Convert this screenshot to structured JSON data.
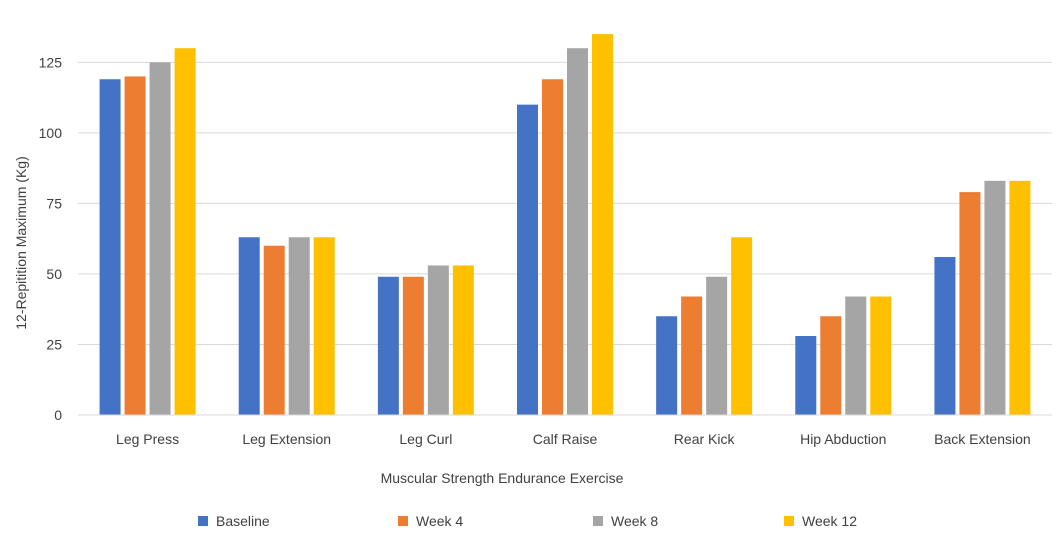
{
  "chart_data": {
    "type": "bar",
    "xlabel": "Muscular Strength Endurance Exercise",
    "ylabel": "12-Repitition Maximum (Kg)",
    "ylim": [
      0,
      140
    ],
    "yticks": [
      0,
      25,
      50,
      75,
      100,
      125
    ],
    "grid": "horizontal",
    "legend_position": "bottom",
    "categories": [
      "Leg Press",
      "Leg Extension",
      "Leg Curl",
      "Calf Raise",
      "Rear Kick",
      "Hip Abduction",
      "Back Extension"
    ],
    "series": [
      {
        "name": "Baseline",
        "color": "#4472C4",
        "values": [
          119,
          63,
          49,
          110,
          35,
          28,
          56
        ]
      },
      {
        "name": "Week 4",
        "color": "#ED7D31",
        "values": [
          120,
          60,
          49,
          119,
          42,
          35,
          79
        ]
      },
      {
        "name": "Week 8",
        "color": "#A5A5A5",
        "values": [
          125,
          63,
          53,
          130,
          49,
          42,
          83
        ]
      },
      {
        "name": "Week 12",
        "color": "#FFC000",
        "values": [
          130,
          63,
          53,
          135,
          63,
          42,
          83
        ]
      }
    ]
  }
}
